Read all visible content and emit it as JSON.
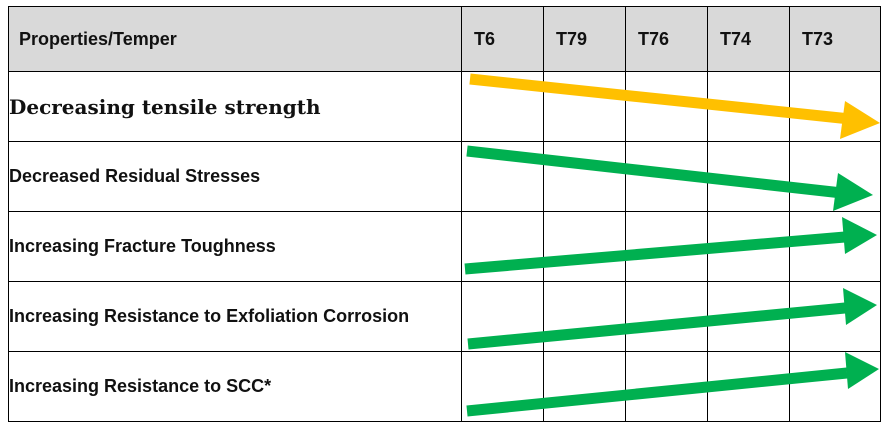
{
  "table": {
    "header": {
      "properties_label": "Properties/Temper",
      "tempers": [
        "T6",
        "T79",
        "T76",
        "T74",
        "T73"
      ]
    },
    "rows": [
      {
        "property": "Decreasing tensile strength",
        "arrow_color": "#ffc000",
        "arrow_direction": "down-right"
      },
      {
        "property": "Decreased Residual Stresses",
        "arrow_color": "#00b050",
        "arrow_direction": "down-right"
      },
      {
        "property": "Increasing Fracture Toughness",
        "arrow_color": "#00b050",
        "arrow_direction": "up-right"
      },
      {
        "property": "Increasing Resistance to Exfoliation Corrosion",
        "arrow_color": "#00b050",
        "arrow_direction": "up-right"
      },
      {
        "property": "Increasing Resistance to SCC*",
        "arrow_color": "#00b050",
        "arrow_direction": "up-right"
      }
    ]
  }
}
